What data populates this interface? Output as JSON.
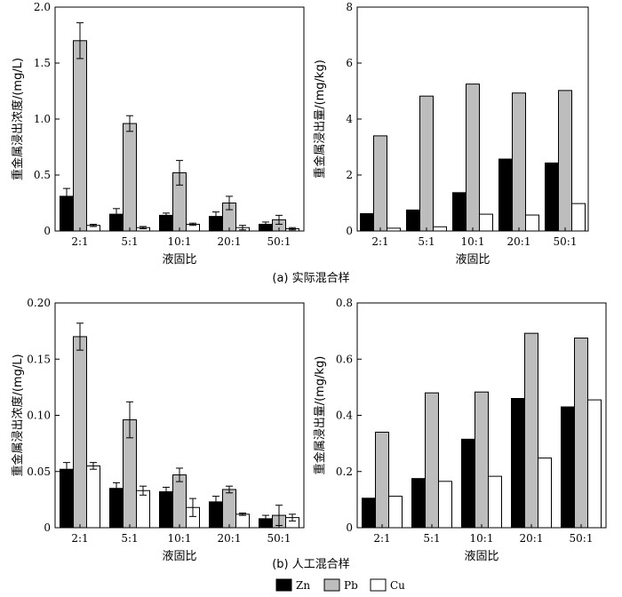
{
  "legend": [
    {
      "name": "Zn",
      "color": "#000000"
    },
    {
      "name": "Pb",
      "color": "#bdbdbd"
    },
    {
      "name": "Cu",
      "color": "#ffffff"
    }
  ],
  "captions": {
    "a": "(a)  实际混合样",
    "b": "(b)  人工混合样"
  },
  "chart_data": [
    {
      "id": "a-left",
      "type": "bar",
      "categories": [
        "2:1",
        "5:1",
        "10:1",
        "20:1",
        "50:1"
      ],
      "series": [
        {
          "name": "Zn",
          "values": [
            0.31,
            0.15,
            0.14,
            0.13,
            0.06
          ],
          "errors": [
            0.07,
            0.05,
            0.02,
            0.04,
            0.02
          ]
        },
        {
          "name": "Pb",
          "values": [
            1.7,
            0.96,
            0.52,
            0.25,
            0.1
          ],
          "errors": [
            0.16,
            0.07,
            0.11,
            0.06,
            0.04
          ]
        },
        {
          "name": "Cu",
          "values": [
            0.05,
            0.03,
            0.06,
            0.03,
            0.02
          ],
          "errors": [
            0.01,
            0.01,
            0.01,
            0.02,
            0.01
          ]
        }
      ],
      "ylim": [
        0,
        2.0
      ],
      "yticks": [
        "0",
        "0.5",
        "1.0",
        "1.5",
        "2.0"
      ],
      "ytick_values": [
        0,
        0.5,
        1.0,
        1.5,
        2.0
      ],
      "ylabel": "重金属浸出浓度/(mg/L)",
      "xlabel": "液固比"
    },
    {
      "id": "a-right",
      "type": "bar",
      "categories": [
        "2:1",
        "5:1",
        "10:1",
        "20:1",
        "50:1"
      ],
      "series": [
        {
          "name": "Zn",
          "values": [
            0.62,
            0.75,
            1.37,
            2.57,
            2.43
          ]
        },
        {
          "name": "Pb",
          "values": [
            3.4,
            4.82,
            5.25,
            4.93,
            5.02
          ]
        },
        {
          "name": "Cu",
          "values": [
            0.1,
            0.15,
            0.6,
            0.57,
            0.98
          ]
        }
      ],
      "ylim": [
        0,
        8
      ],
      "yticks": [
        "0",
        "2",
        "4",
        "6",
        "8"
      ],
      "ytick_values": [
        0,
        2,
        4,
        6,
        8
      ],
      "ylabel": "重金属浸出量/(mg/kg)",
      "xlabel": "液固比"
    },
    {
      "id": "b-left",
      "type": "bar",
      "categories": [
        "2:1",
        "5:1",
        "10:1",
        "20:1",
        "50:1"
      ],
      "series": [
        {
          "name": "Zn",
          "values": [
            0.052,
            0.035,
            0.032,
            0.023,
            0.008
          ],
          "errors": [
            0.006,
            0.005,
            0.004,
            0.005,
            0.003
          ]
        },
        {
          "name": "Pb",
          "values": [
            0.17,
            0.096,
            0.047,
            0.034,
            0.011
          ],
          "errors": [
            0.012,
            0.016,
            0.006,
            0.003,
            0.009
          ]
        },
        {
          "name": "Cu",
          "values": [
            0.055,
            0.033,
            0.018,
            0.012,
            0.009
          ],
          "errors": [
            0.003,
            0.004,
            0.008,
            0.001,
            0.003
          ]
        }
      ],
      "ylim": [
        0,
        0.2
      ],
      "yticks": [
        "0",
        "0.05",
        "0.10",
        "0.15",
        "0.20"
      ],
      "ytick_values": [
        0,
        0.05,
        0.1,
        0.15,
        0.2
      ],
      "ylabel": "重金属浸出浓度/(mg/L)",
      "xlabel": "液固比"
    },
    {
      "id": "b-right",
      "type": "bar",
      "categories": [
        "2:1",
        "5:1",
        "10:1",
        "20:1",
        "50:1"
      ],
      "series": [
        {
          "name": "Zn",
          "values": [
            0.105,
            0.175,
            0.315,
            0.46,
            0.43
          ]
        },
        {
          "name": "Pb",
          "values": [
            0.34,
            0.48,
            0.483,
            0.692,
            0.675
          ]
        },
        {
          "name": "Cu",
          "values": [
            0.112,
            0.165,
            0.183,
            0.248,
            0.455
          ]
        }
      ],
      "ylim": [
        0,
        0.8
      ],
      "yticks": [
        "0",
        "0.2",
        "0.4",
        "0.6",
        "0.8"
      ],
      "ytick_values": [
        0,
        0.2,
        0.4,
        0.6,
        0.8
      ],
      "ylabel": "重金属浸出量/(mg/kg)",
      "xlabel": "液固比"
    }
  ]
}
